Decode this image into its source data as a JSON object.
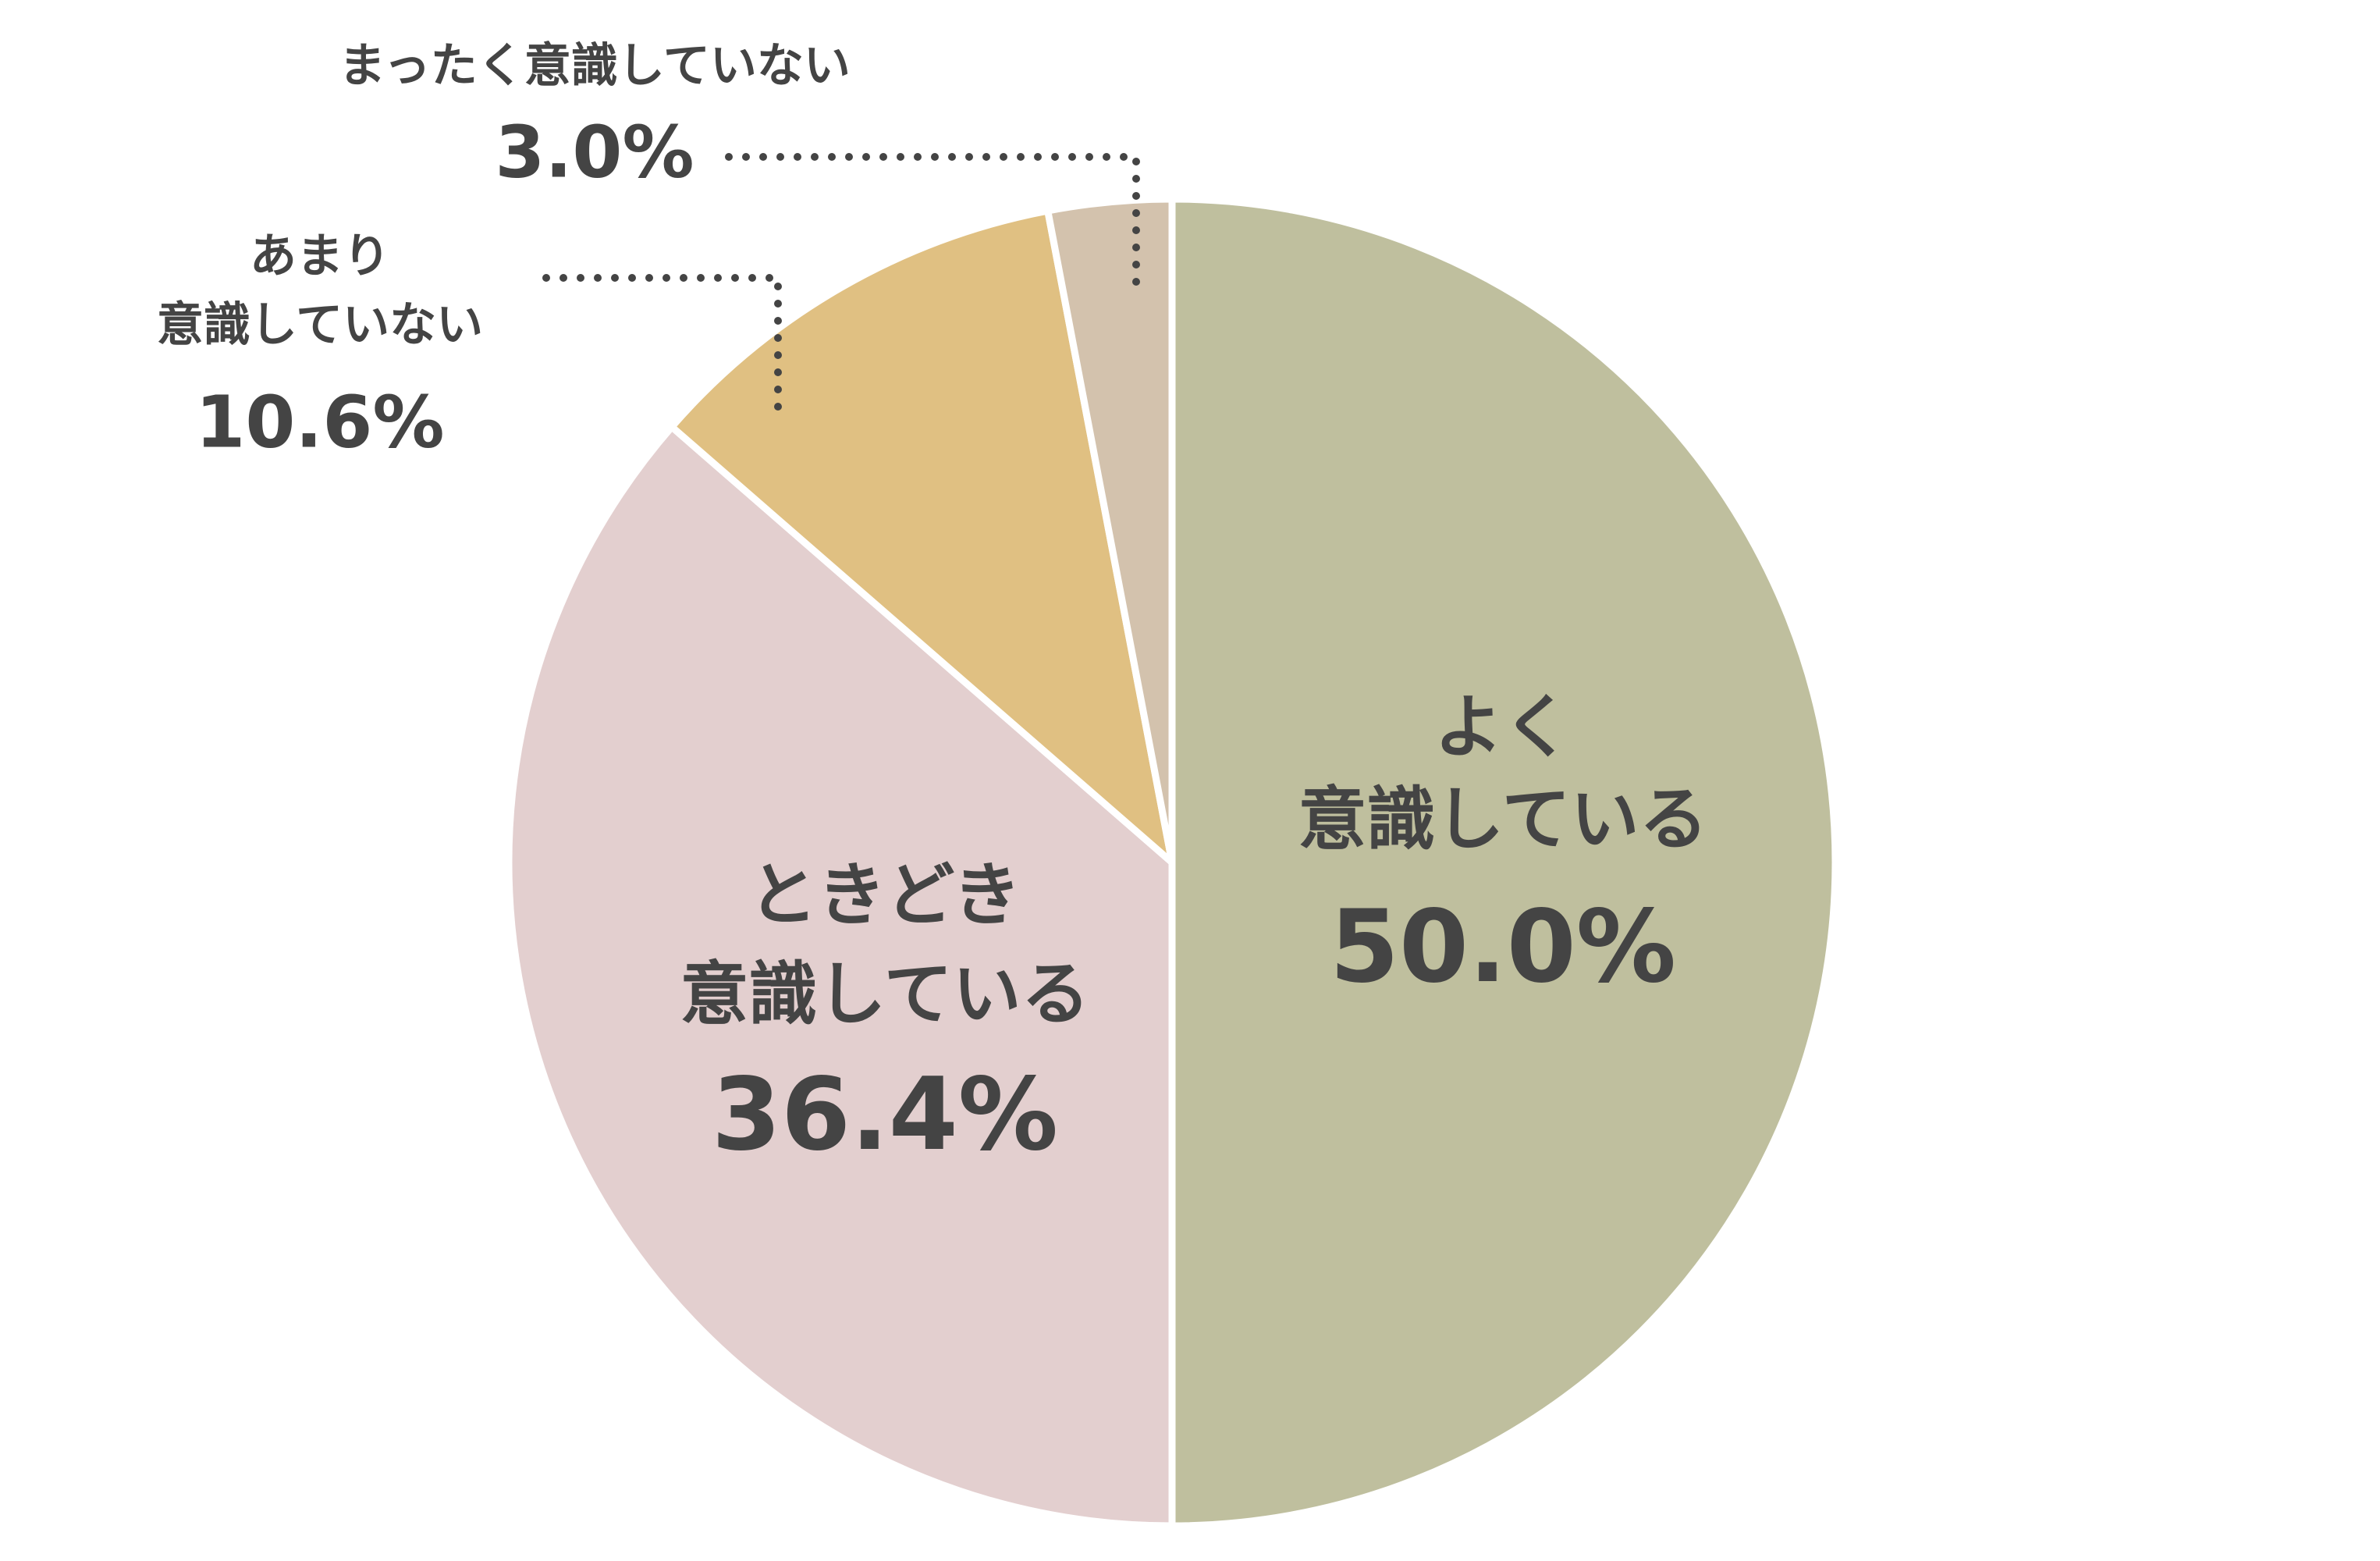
{
  "chart_data": {
    "type": "pie",
    "categories": [
      [
        "よく",
        "意識している"
      ],
      [
        "ときどき",
        "意識している"
      ],
      [
        "あまり",
        "意識していない"
      ],
      [
        "まったく意識していない"
      ]
    ],
    "values": [
      50.0,
      36.4,
      10.6,
      3.0
    ],
    "value_labels": [
      "50.0%",
      "36.4%",
      "10.6%",
      "3.0%"
    ],
    "colors": [
      "#bfbf9e",
      "#e3cfcf",
      "#e0c082",
      "#d3c2ad"
    ]
  }
}
